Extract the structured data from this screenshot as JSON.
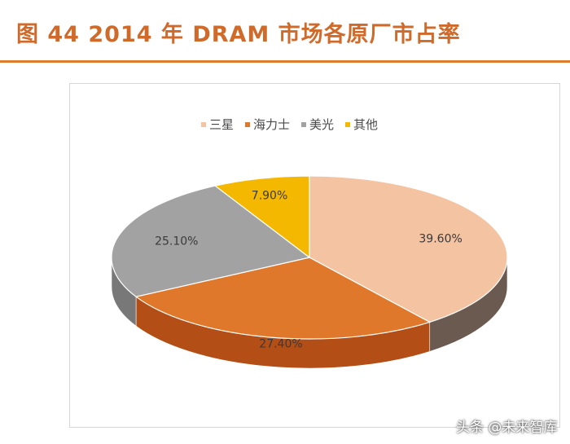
{
  "header": {
    "title": "图 44 2014 年 DRAM 市场各原厂市占率"
  },
  "chart_data": {
    "type": "pie",
    "title": "",
    "legend_position": "top",
    "categories": [
      "三星",
      "海力士",
      "美光",
      "其他"
    ],
    "values": [
      39.6,
      27.4,
      25.1,
      7.9
    ],
    "labels": [
      "39.60%",
      "27.40%",
      "25.10%",
      "7.90%"
    ],
    "colors": {
      "top": [
        "#f4c3a2",
        "#e0782c",
        "#a2a2a2",
        "#f5b800"
      ],
      "side": [
        "#6b5a50",
        "#b24e16",
        "#787878",
        "#c49000"
      ]
    }
  },
  "watermark": "头条 @未来智库"
}
